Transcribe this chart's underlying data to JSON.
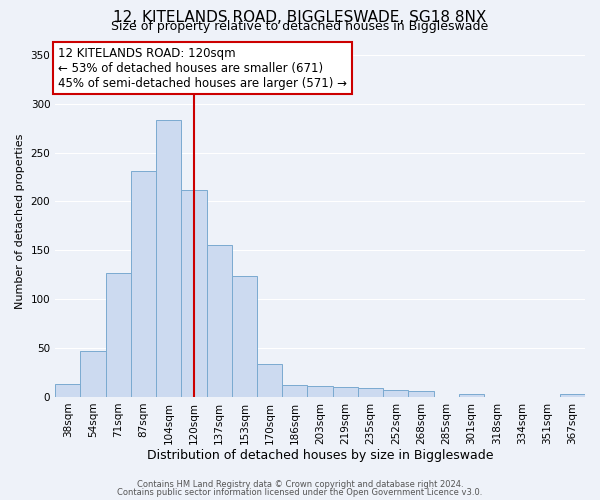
{
  "title": "12, KITELANDS ROAD, BIGGLESWADE, SG18 8NX",
  "subtitle": "Size of property relative to detached houses in Biggleswade",
  "xlabel": "Distribution of detached houses by size in Biggleswade",
  "ylabel": "Number of detached properties",
  "bin_labels": [
    "38sqm",
    "54sqm",
    "71sqm",
    "87sqm",
    "104sqm",
    "120sqm",
    "137sqm",
    "153sqm",
    "170sqm",
    "186sqm",
    "203sqm",
    "219sqm",
    "235sqm",
    "252sqm",
    "268sqm",
    "285sqm",
    "301sqm",
    "318sqm",
    "334sqm",
    "351sqm",
    "367sqm"
  ],
  "bar_heights": [
    13,
    47,
    127,
    231,
    283,
    212,
    155,
    124,
    34,
    12,
    11,
    10,
    9,
    7,
    6,
    0,
    3,
    0,
    0,
    0,
    3
  ],
  "bar_color": "#ccdaf0",
  "bar_edge_color": "#7aaad0",
  "vline_x": 5,
  "vline_color": "#cc0000",
  "ylim": [
    0,
    360
  ],
  "yticks": [
    0,
    50,
    100,
    150,
    200,
    250,
    300,
    350
  ],
  "annotation_title": "12 KITELANDS ROAD: 120sqm",
  "annotation_line1": "← 53% of detached houses are smaller (671)",
  "annotation_line2": "45% of semi-detached houses are larger (571) →",
  "annotation_box_color": "#ffffff",
  "annotation_box_edge": "#cc0000",
  "footer_line1": "Contains HM Land Registry data © Crown copyright and database right 2024.",
  "footer_line2": "Contains public sector information licensed under the Open Government Licence v3.0.",
  "bg_color": "#eef2f9",
  "grid_color": "#ffffff",
  "title_fontsize": 11,
  "subtitle_fontsize": 9,
  "annotation_fontsize": 8.5,
  "ylabel_fontsize": 8,
  "xlabel_fontsize": 9,
  "tick_fontsize": 7.5,
  "footer_fontsize": 6
}
